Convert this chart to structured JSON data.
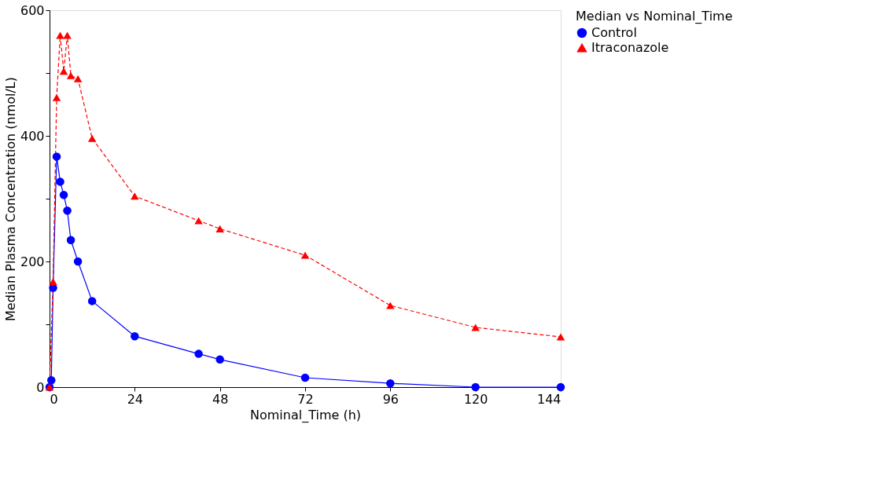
{
  "chart_data": {
    "type": "line",
    "xlabel": "Nominal_Time (h)",
    "ylabel": "Median Plasma Concentration (nmol/L)",
    "legend_title": "Median vs Nominal_Time",
    "legend": "right",
    "grid": false,
    "xlim": [
      0,
      144
    ],
    "xticks": [
      0,
      24,
      48,
      72,
      96,
      120,
      144
    ],
    "ylim": [
      0,
      600
    ],
    "yticks": [
      0,
      {
        "value": 100,
        "label": null
      },
      200,
      {
        "value": 300,
        "label": null
      },
      400,
      {
        "value": 500,
        "label": null
      },
      600
    ],
    "series": [
      {
        "name": "Control",
        "color": "#0000ff",
        "marker": "circle",
        "line_style": "solid",
        "x": [
          0,
          0.5,
          1,
          2,
          3,
          4,
          5,
          6,
          8,
          12,
          24,
          42,
          48,
          72,
          96,
          120,
          144
        ],
        "values": [
          0,
          11,
          158,
          367,
          327,
          306,
          281,
          234,
          200,
          137,
          81,
          53,
          44,
          15,
          6,
          0,
          0
        ]
      },
      {
        "name": "Itraconazole",
        "color": "#ff0000",
        "marker": "triangle",
        "line_style": "dashed",
        "x": [
          0,
          1,
          2,
          3,
          4,
          5,
          6,
          8,
          12,
          24,
          42,
          48,
          72,
          96,
          120,
          144
        ],
        "values": [
          0,
          168,
          461,
          560,
          503,
          560,
          496,
          491,
          396,
          304,
          265,
          252,
          210,
          130,
          95,
          80
        ]
      }
    ]
  }
}
